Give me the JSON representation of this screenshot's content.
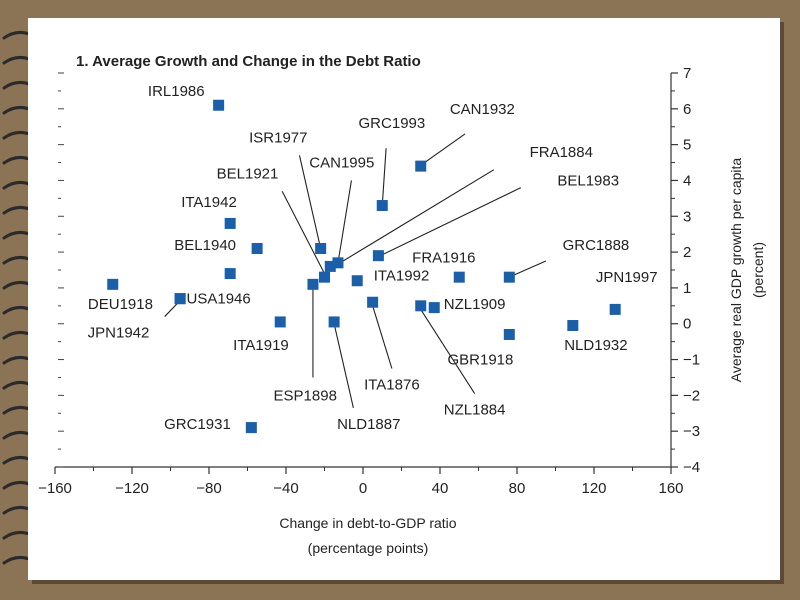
{
  "chart_data": {
    "type": "scatter",
    "title": "1. Average Growth and Change in the Debt Ratio",
    "xlabel": [
      "Change in debt-to-GDP ratio",
      "(percentage points)"
    ],
    "ylabel": [
      "Average real GDP growth per capita",
      "(percent)"
    ],
    "xlim": [
      -160,
      160
    ],
    "ylim": [
      -4,
      7
    ],
    "xticks": [
      -160,
      -120,
      -80,
      -40,
      0,
      40,
      80,
      120,
      160
    ],
    "yticks": [
      7,
      6,
      5,
      4,
      3,
      2,
      1,
      0,
      -1,
      -2,
      -3,
      -4
    ],
    "xtick_labels": [
      "−160",
      "−120",
      "−80",
      "−40",
      "0",
      "40",
      "80",
      "120",
      "160"
    ],
    "ytick_labels": [
      "7",
      "6",
      "5",
      "4",
      "3",
      "2",
      "1",
      "0",
      "−1",
      "−2",
      "−3",
      "−4"
    ],
    "marker_color": "#1a5fa8",
    "points": [
      {
        "label": "IRL1986",
        "x": -75,
        "y": 6.1
      },
      {
        "label": "CAN1932",
        "x": 30,
        "y": 4.4
      },
      {
        "label": "GRC1993",
        "x": 10,
        "y": 3.3
      },
      {
        "label": "ITA1942",
        "x": -69,
        "y": 2.8
      },
      {
        "label": "BEL1940",
        "x": -55,
        "y": 2.1
      },
      {
        "label": "ISR1977",
        "x": -22,
        "y": 2.1
      },
      {
        "label": "BEL1983",
        "x": 8,
        "y": 1.9
      },
      {
        "label": "CAN1995",
        "x": -13,
        "y": 1.7
      },
      {
        "label": "FRA1884",
        "x": -17,
        "y": 1.6
      },
      {
        "label": "BEL1921",
        "x": -20,
        "y": 1.3
      },
      {
        "label": "",
        "x": -69,
        "y": 1.4
      },
      {
        "label": "ITA1992",
        "x": -3,
        "y": 1.2
      },
      {
        "label": "FRA1916",
        "x": 50,
        "y": 1.3
      },
      {
        "label": "GRC1888",
        "x": 76,
        "y": 1.3
      },
      {
        "label": "ESP1898",
        "x": -26,
        "y": 1.1
      },
      {
        "label": "DEU1918",
        "x": -130,
        "y": 1.1
      },
      {
        "label": "USA1946",
        "x": -95,
        "y": 0.7
      },
      {
        "label": "ITA1876",
        "x": 5,
        "y": 0.6
      },
      {
        "label": "NZL1884",
        "x": 30,
        "y": 0.5
      },
      {
        "label": "NZL1909",
        "x": 37,
        "y": 0.45
      },
      {
        "label": "JPN1997",
        "x": 131,
        "y": 0.4
      },
      {
        "label": "ITA1919",
        "x": -43,
        "y": 0.05
      },
      {
        "label": "NLD1887",
        "x": -15,
        "y": 0.05
      },
      {
        "label": "NLD1932",
        "x": 109,
        "y": -0.05
      },
      {
        "label": "GBR1918",
        "x": 76,
        "y": -0.3
      },
      {
        "label": "JPN1942",
        "x": -95,
        "y": 0.7
      },
      {
        "label": "GRC1931",
        "x": -58,
        "y": -2.9
      }
    ],
    "annotations": [
      {
        "label": "IRL1986",
        "tx": -97,
        "ty": 6.5
      },
      {
        "label": "ISR1977",
        "tx": -44,
        "ty": 5.2
      },
      {
        "label": "GRC1993",
        "tx": 15,
        "ty": 5.6
      },
      {
        "label": "CAN1932",
        "tx": 62,
        "ty": 6.0
      },
      {
        "label": "FRA1884",
        "tx": 103,
        "ty": 4.8
      },
      {
        "label": "BEL1921",
        "tx": -60,
        "ty": 4.2
      },
      {
        "label": "CAN1995",
        "tx": -11,
        "ty": 4.5
      },
      {
        "label": "BEL1983",
        "tx": 117,
        "ty": 4.0
      },
      {
        "label": "ITA1942",
        "tx": -80,
        "ty": 3.4
      },
      {
        "label": "BEL1940",
        "tx": -82,
        "ty": 2.2
      },
      {
        "label": "FRA1916",
        "tx": 42,
        "ty": 1.85
      },
      {
        "label": "GRC1888",
        "tx": 121,
        "ty": 2.2
      },
      {
        "label": "ITA1992",
        "tx": 20,
        "ty": 1.35
      },
      {
        "label": "JPN1997",
        "tx": 137,
        "ty": 1.3
      },
      {
        "label": "DEU1918",
        "tx": -126,
        "ty": 0.55
      },
      {
        "label": "USA1946",
        "tx": -75,
        "ty": 0.7
      },
      {
        "label": "NZL1909",
        "tx": 58,
        "ty": 0.55
      },
      {
        "label": "JPN1942",
        "tx": -127,
        "ty": -0.25
      },
      {
        "label": "ITA1919",
        "tx": -53,
        "ty": -0.6
      },
      {
        "label": "NLD1932",
        "tx": 121,
        "ty": -0.6
      },
      {
        "label": "GBR1918",
        "tx": 61,
        "ty": -1.0
      },
      {
        "label": "ITA1876",
        "tx": 15,
        "ty": -1.7
      },
      {
        "label": "ESP1898",
        "tx": -30,
        "ty": -2.0
      },
      {
        "label": "NZL1884",
        "tx": 58,
        "ty": -2.4
      },
      {
        "label": "NLD1887",
        "tx": 3,
        "ty": -2.8
      },
      {
        "label": "GRC1931",
        "tx": -86,
        "ty": -2.8
      }
    ],
    "leaders": [
      {
        "label": "ISR1977",
        "from": [
          -33,
          4.7
        ],
        "to": [
          -22,
          2.1
        ]
      },
      {
        "label": "GRC1993",
        "from": [
          12,
          4.9
        ],
        "to": [
          10,
          3.3
        ]
      },
      {
        "label": "CAN1932",
        "from": [
          53,
          5.3
        ],
        "to": [
          32,
          4.5
        ]
      },
      {
        "label": "FRA1884",
        "from": [
          68,
          4.3
        ],
        "to": [
          -15,
          1.6
        ]
      },
      {
        "label": "BEL1921",
        "from": [
          -42,
          3.7
        ],
        "to": [
          -20,
          1.4
        ]
      },
      {
        "label": "CAN1995",
        "from": [
          -6,
          4.0
        ],
        "to": [
          -13,
          1.7
        ]
      },
      {
        "label": "BEL1983",
        "from": [
          82,
          3.8
        ],
        "to": [
          9,
          1.9
        ]
      },
      {
        "label": "GRC1888",
        "from": [
          95,
          1.75
        ],
        "to": [
          78,
          1.35
        ]
      },
      {
        "label": "JPN1942",
        "from": [
          -103,
          0.2
        ],
        "to": [
          -95,
          0.65
        ]
      },
      {
        "label": "ESP1898",
        "from": [
          -26,
          -1.5
        ],
        "to": [
          -26,
          1.0
        ]
      },
      {
        "label": "NZL1884",
        "from": [
          58,
          -1.95
        ],
        "to": [
          30,
          0.4
        ]
      },
      {
        "label": "NLD1887",
        "from": [
          -5,
          -2.35
        ],
        "to": [
          -15,
          0.0
        ]
      },
      {
        "label": "ITA1876",
        "from": [
          15,
          -1.25
        ],
        "to": [
          5,
          0.5
        ]
      }
    ]
  }
}
